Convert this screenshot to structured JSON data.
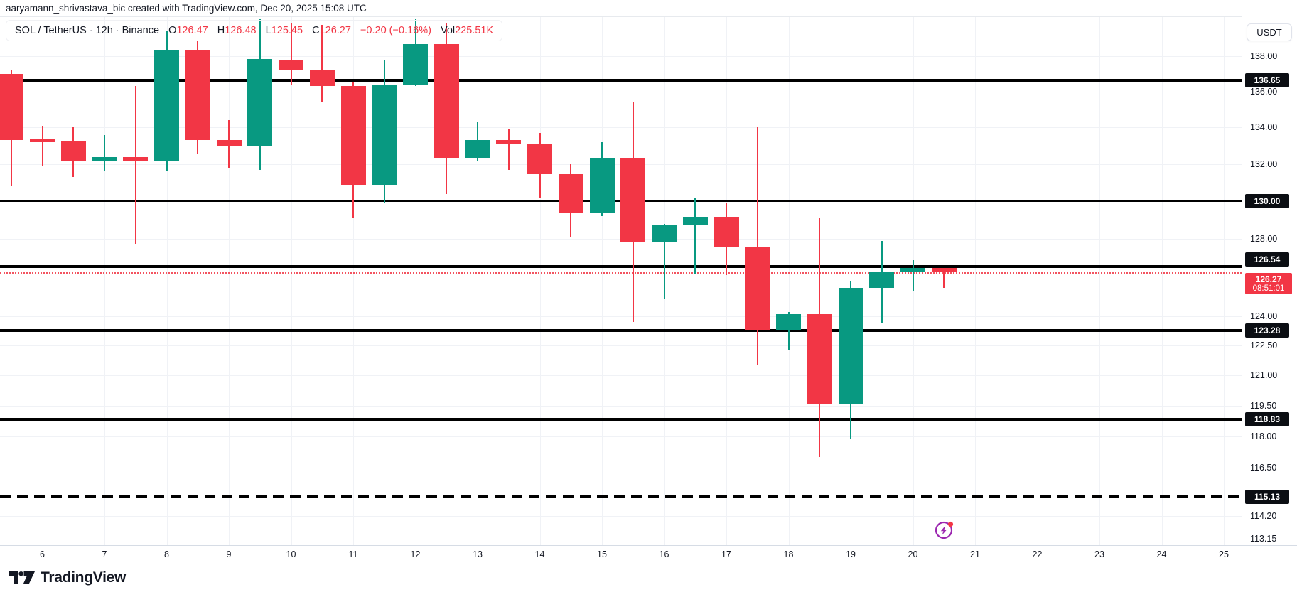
{
  "attribution": "aaryamann_shrivastava_bic created with TradingView.com, Dec 20, 2025 15:08 UTC",
  "legend": {
    "symbol": "SOL / TetherUS",
    "separator": "·",
    "interval": "12h",
    "exchange": "Binance",
    "o_label": "O",
    "o_value": "126.47",
    "h_label": "H",
    "h_value": "126.48",
    "l_label": "L",
    "l_value": "125.45",
    "c_label": "C",
    "c_value": "126.27",
    "change": "−0.20 (−0.16%)",
    "vol_label": "Vol",
    "vol_value": "225.51K"
  },
  "price_axis": {
    "currency_button": "USDT",
    "ticks": [
      "138.00",
      "136.00",
      "134.00",
      "132.00",
      "128.00",
      "124.00",
      "122.50",
      "121.00",
      "119.50",
      "118.00",
      "116.50",
      "114.20",
      "113.15"
    ],
    "tick_prices": [
      138.0,
      136.0,
      134.0,
      132.0,
      128.0,
      124.0,
      122.5,
      121.0,
      119.5,
      118.0,
      116.5,
      114.2,
      113.15
    ]
  },
  "time_axis": {
    "labels": [
      "6",
      "7",
      "8",
      "9",
      "10",
      "11",
      "12",
      "13",
      "14",
      "15",
      "16",
      "17",
      "18",
      "19",
      "20",
      "21",
      "22",
      "23",
      "24",
      "25"
    ]
  },
  "logo": {
    "text": "TradingView"
  },
  "colors": {
    "up": "#089981",
    "down": "#F23645",
    "badge_bg": "#0B0E13",
    "current": "#F23645",
    "text": "#131722",
    "icon_purple": "#9C27B0"
  },
  "chart_data": {
    "type": "candlestick",
    "title": "SOL / TetherUS · 12h · Binance",
    "ylabel": "USDT",
    "grid": true,
    "legend_position": "top-left",
    "y_visible_range": [
      113.15,
      141.0
    ],
    "x_tick_labels": [
      "6",
      "7",
      "8",
      "9",
      "10",
      "11",
      "12",
      "13",
      "14",
      "15",
      "16",
      "17",
      "18",
      "19",
      "20",
      "21",
      "22",
      "23",
      "24",
      "25"
    ],
    "levels": [
      {
        "price": 136.65,
        "label": "136.65",
        "style": "solid",
        "weight": "thick"
      },
      {
        "price": 130.0,
        "label": "130.00",
        "style": "solid",
        "weight": "thin"
      },
      {
        "price": 126.54,
        "label": "126.54",
        "style": "solid",
        "weight": "thick"
      },
      {
        "price": 123.28,
        "label": "123.28",
        "style": "solid",
        "weight": "thick"
      },
      {
        "price": 118.83,
        "label": "118.83",
        "style": "solid",
        "weight": "thick"
      },
      {
        "price": 115.13,
        "label": "115.13",
        "style": "dashed",
        "weight": "thick"
      }
    ],
    "current_price": {
      "price": 126.27,
      "label": "126.27",
      "countdown": "08:51:01"
    },
    "last_bar": {
      "open": 126.47,
      "high": 126.48,
      "low": 125.45,
      "close": 126.27,
      "change": -0.2,
      "change_pct": -0.16,
      "volume": "225.51K"
    },
    "candles": [
      {
        "time": "Dec 5 12:00",
        "o": 137.0,
        "h": 137.2,
        "l": 130.8,
        "c": 133.3
      },
      {
        "time": "Dec 6 00:00",
        "o": 133.4,
        "h": 134.1,
        "l": 131.9,
        "c": 133.2
      },
      {
        "time": "Dec 6 12:00",
        "o": 133.25,
        "h": 134.0,
        "l": 131.3,
        "c": 132.2
      },
      {
        "time": "Dec 7 00:00",
        "o": 132.15,
        "h": 133.6,
        "l": 131.6,
        "c": 132.4
      },
      {
        "time": "Dec 7 12:00",
        "o": 132.4,
        "h": 136.3,
        "l": 127.7,
        "c": 132.2
      },
      {
        "time": "Dec 8 00:00",
        "o": 132.2,
        "h": 139.4,
        "l": 131.6,
        "c": 138.35
      },
      {
        "time": "Dec 8 12:00",
        "o": 138.35,
        "h": 138.9,
        "l": 132.55,
        "c": 133.3
      },
      {
        "time": "Dec 9 00:00",
        "o": 133.3,
        "h": 134.4,
        "l": 131.8,
        "c": 132.95
      },
      {
        "time": "Dec 9 12:00",
        "o": 133.0,
        "h": 140.1,
        "l": 131.7,
        "c": 137.85
      },
      {
        "time": "Dec 10 00:00",
        "o": 137.8,
        "h": 139.9,
        "l": 136.35,
        "c": 137.2
      },
      {
        "time": "Dec 10 12:00",
        "o": 137.2,
        "h": 139.8,
        "l": 135.4,
        "c": 136.3
      },
      {
        "time": "Dec 11 00:00",
        "o": 136.3,
        "h": 136.5,
        "l": 129.1,
        "c": 130.9
      },
      {
        "time": "Dec 11 12:00",
        "o": 130.9,
        "h": 137.8,
        "l": 129.9,
        "c": 136.4
      },
      {
        "time": "Dec 12 00:00",
        "o": 136.4,
        "h": 140.1,
        "l": 136.3,
        "c": 138.7
      },
      {
        "time": "Dec 12 12:00",
        "o": 138.7,
        "h": 139.9,
        "l": 130.4,
        "c": 132.3
      },
      {
        "time": "Dec 13 00:00",
        "o": 132.3,
        "h": 134.3,
        "l": 132.2,
        "c": 133.3
      },
      {
        "time": "Dec 13 12:00",
        "o": 133.3,
        "h": 133.9,
        "l": 131.7,
        "c": 133.1
      },
      {
        "time": "Dec 14 00:00",
        "o": 133.1,
        "h": 133.7,
        "l": 130.2,
        "c": 131.45
      },
      {
        "time": "Dec 14 12:00",
        "o": 131.45,
        "h": 132.0,
        "l": 128.1,
        "c": 129.4
      },
      {
        "time": "Dec 15 00:00",
        "o": 129.4,
        "h": 133.2,
        "l": 129.2,
        "c": 132.3
      },
      {
        "time": "Dec 15 12:00",
        "o": 132.3,
        "h": 135.4,
        "l": 123.7,
        "c": 127.8
      },
      {
        "time": "Dec 16 00:00",
        "o": 127.8,
        "h": 128.8,
        "l": 124.9,
        "c": 128.7
      },
      {
        "time": "Dec 16 12:00",
        "o": 128.7,
        "h": 130.2,
        "l": 126.2,
        "c": 129.15
      },
      {
        "time": "Dec 17 00:00",
        "o": 129.15,
        "h": 129.9,
        "l": 126.1,
        "c": 127.6
      },
      {
        "time": "Dec 17 12:00",
        "o": 127.6,
        "h": 134.0,
        "l": 121.5,
        "c": 123.3
      },
      {
        "time": "Dec 18 00:00",
        "o": 123.3,
        "h": 124.2,
        "l": 122.3,
        "c": 124.1
      },
      {
        "time": "Dec 18 12:00",
        "o": 124.1,
        "h": 129.1,
        "l": 117.0,
        "c": 119.6
      },
      {
        "time": "Dec 19 00:00",
        "o": 119.6,
        "h": 125.8,
        "l": 117.9,
        "c": 125.45
      },
      {
        "time": "Dec 19 12:00",
        "o": 125.45,
        "h": 127.9,
        "l": 123.65,
        "c": 126.3
      },
      {
        "time": "Dec 20 00:00",
        "o": 126.3,
        "h": 126.9,
        "l": 125.3,
        "c": 126.47
      },
      {
        "time": "Dec 20 12:00",
        "o": 126.47,
        "h": 126.48,
        "l": 125.45,
        "c": 126.27
      }
    ]
  }
}
